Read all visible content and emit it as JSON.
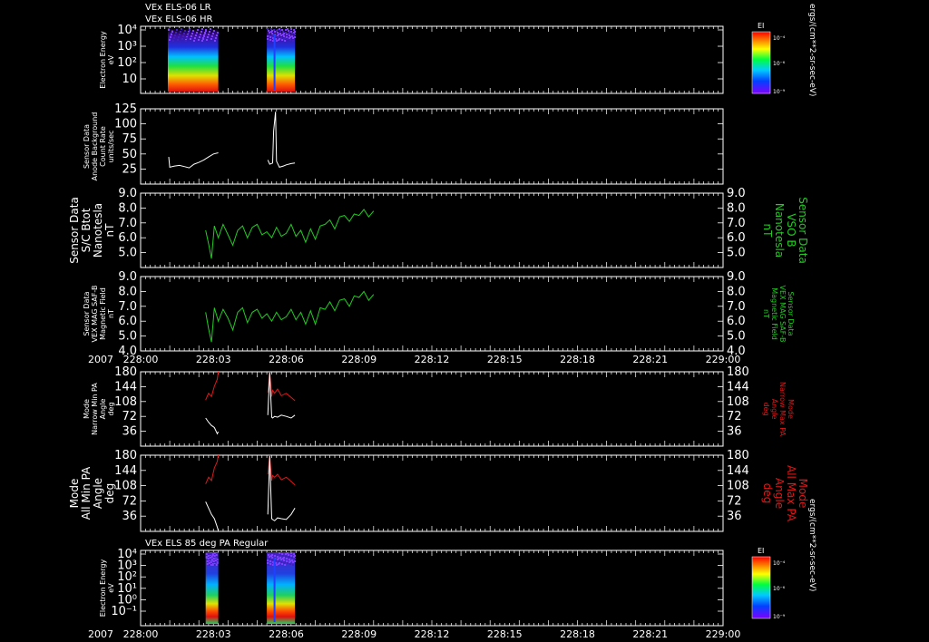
{
  "colors": {
    "background": "#000000",
    "frame": "#ffffff",
    "white_trace": "#ffffff",
    "green_trace": "#22cc22",
    "red_trace": "#e01818"
  },
  "header": {
    "line1": "VEx ELS-06 LR",
    "line2": "VEx ELS-06 HR"
  },
  "x_axis": {
    "year": "2007",
    "range": [
      0,
      60
    ],
    "tick_labels": [
      "228:00",
      "228:03",
      "228:06",
      "228:09",
      "228:12",
      "228:15",
      "228:18",
      "228:21",
      "229:00"
    ]
  },
  "chart_data": [
    {
      "type": "heatmap",
      "id": "els-energy-spectrogram",
      "ylabel": [
        "Electron Energy",
        "eV"
      ],
      "yscale": "log",
      "yticks": [
        "10⁴",
        "10³",
        "10²",
        "10"
      ],
      "data_intervals": [
        [
          2.8,
          8.0
        ],
        [
          13.0,
          15.9
        ]
      ],
      "colorbar": {
        "title": "EI",
        "ticks": [
          "10⁻⁴",
          "10⁻⁶",
          "10⁻⁹"
        ],
        "unit": "ergs/(cm**2-sr-sec-eV)"
      }
    },
    {
      "type": "line",
      "id": "anode-background",
      "ylabel": [
        "Sensor Data",
        "Anode Background",
        "Count Rate",
        "units/sec"
      ],
      "ylim": [
        0,
        125
      ],
      "yticks": [
        "125",
        "100",
        "75",
        "50",
        "25"
      ],
      "series": [
        {
          "name": "Background",
          "color": "white",
          "x": [
            2.9,
            3.0,
            3.5,
            4.0,
            4.5,
            5.0,
            5.5,
            6.0,
            6.5,
            7.0,
            7.5,
            8.0
          ],
          "y": [
            45,
            28,
            30,
            31,
            29,
            27,
            33,
            36,
            40,
            45,
            50,
            52
          ]
        },
        {
          "name": "Background HR",
          "color": "white",
          "x": [
            13.1,
            13.3,
            13.6,
            13.7,
            13.9,
            14.0,
            14.3,
            14.7,
            15.0,
            15.5,
            15.9
          ],
          "y": [
            40,
            33,
            35,
            88,
            120,
            38,
            28,
            30,
            32,
            34,
            35
          ]
        }
      ]
    },
    {
      "type": "line",
      "id": "sc-btot",
      "ylabel": [
        "Sensor Data",
        "S/C Btot",
        "Nanotesla",
        "nT"
      ],
      "right_label": [
        "Sensor Data",
        "VSO B",
        "Nanotesla",
        "nT"
      ],
      "ylim": [
        4.0,
        9.0
      ],
      "yticks": [
        "9.0",
        "8.0",
        "7.0",
        "6.0",
        "5.0"
      ],
      "series": [
        {
          "name": "Btot",
          "color": "green",
          "x": [
            6.7,
            7.0,
            7.3,
            7.6,
            8.0,
            8.5,
            9.0,
            9.5,
            10.0,
            10.5,
            11.0,
            11.5,
            12.0,
            12.5,
            13.0,
            13.5,
            14.0,
            14.5,
            15.0,
            15.5,
            16.0,
            16.5,
            17.0,
            17.5,
            18.0,
            18.5,
            19.0,
            19.5,
            20.0,
            20.5,
            21.0,
            21.5,
            22.0,
            22.5,
            23.0,
            23.5,
            24.0
          ],
          "y": [
            6.5,
            5.6,
            4.6,
            6.8,
            6.0,
            6.9,
            6.2,
            5.5,
            6.5,
            6.8,
            6.0,
            6.7,
            6.9,
            6.2,
            6.4,
            6.0,
            6.7,
            6.1,
            6.3,
            6.9,
            6.1,
            6.5,
            5.7,
            6.6,
            5.9,
            6.8,
            6.9,
            7.2,
            6.6,
            7.4,
            7.5,
            7.1,
            7.6,
            7.5,
            7.9,
            7.4,
            7.8
          ]
        }
      ]
    },
    {
      "type": "line",
      "id": "mag-field",
      "ylabel": [
        "Sensor Data",
        "VEX MAG SAF-B",
        "Magnetic Field",
        "nT"
      ],
      "right_label": [
        "Sensor Data",
        "VEX MAG SAF-B",
        "Magnetic Field",
        "nT"
      ],
      "ylim": [
        4.0,
        9.0
      ],
      "yticks": [
        "9.0",
        "8.0",
        "7.0",
        "6.0",
        "5.0",
        "4.0"
      ],
      "series": [
        {
          "name": "MAG",
          "color": "green",
          "x": [
            6.7,
            7.0,
            7.3,
            7.6,
            8.0,
            8.5,
            9.0,
            9.5,
            10.0,
            10.5,
            11.0,
            11.5,
            12.0,
            12.5,
            13.0,
            13.5,
            14.0,
            14.5,
            15.0,
            15.5,
            16.0,
            16.5,
            17.0,
            17.5,
            18.0,
            18.5,
            19.0,
            19.5,
            20.0,
            20.5,
            21.0,
            21.5,
            22.0,
            22.5,
            23.0,
            23.5,
            24.0
          ],
          "y": [
            6.6,
            5.5,
            4.6,
            6.9,
            6.0,
            6.8,
            6.2,
            5.4,
            6.6,
            6.9,
            5.9,
            6.6,
            6.8,
            6.2,
            6.5,
            6.0,
            6.6,
            6.1,
            6.3,
            6.8,
            6.1,
            6.6,
            5.8,
            6.7,
            5.8,
            6.9,
            6.8,
            7.3,
            6.7,
            7.4,
            7.5,
            7.0,
            7.7,
            7.6,
            8.0,
            7.4,
            7.8
          ]
        }
      ]
    },
    {
      "type": "line",
      "id": "narrow-pa",
      "ylabel": [
        "Mode",
        "Narrow Min PA",
        "Angle",
        "deg"
      ],
      "right_label": [
        "Mode",
        "Narrow Max PA",
        "Angle",
        "deg"
      ],
      "ylim": [
        0,
        180
      ],
      "yticks": [
        "180",
        "144",
        "108",
        "72",
        "36"
      ],
      "series": [
        {
          "name": "Max PA",
          "color": "red",
          "x": [
            6.7,
            7.0,
            7.3,
            7.6,
            7.9,
            8.0
          ],
          "y": [
            112,
            128,
            120,
            145,
            162,
            180
          ]
        },
        {
          "name": "Min PA",
          "color": "white",
          "x": [
            6.7,
            7.0,
            7.3,
            7.6,
            7.9,
            8.0
          ],
          "y": [
            68,
            58,
            50,
            45,
            30,
            35
          ]
        },
        {
          "name": "Max PA HR",
          "color": "red",
          "x": [
            13.1,
            13.3,
            13.5,
            13.6,
            13.8,
            14.1,
            14.5,
            15.0,
            15.5,
            15.9
          ],
          "y": [
            130,
            178,
            120,
            135,
            128,
            138,
            122,
            128,
            118,
            110
          ]
        },
        {
          "name": "Min PA HR",
          "color": "white",
          "x": [
            13.1,
            13.3,
            13.5,
            13.6,
            13.8,
            14.1,
            14.5,
            15.0,
            15.5,
            15.9
          ],
          "y": [
            75,
            178,
            70,
            68,
            72,
            70,
            75,
            72,
            68,
            75
          ]
        }
      ]
    },
    {
      "type": "line",
      "id": "all-pa",
      "ylabel": [
        "Mode",
        "All Min PA",
        "Angle",
        "deg"
      ],
      "right_label": [
        "Mode",
        "All Max PA",
        "Angle",
        "deg"
      ],
      "ylim": [
        0,
        180
      ],
      "yticks": [
        "180",
        "144",
        "108",
        "72",
        "36"
      ],
      "series": [
        {
          "name": "Max PA",
          "color": "red",
          "x": [
            6.7,
            7.0,
            7.3,
            7.6,
            7.9,
            8.0
          ],
          "y": [
            112,
            128,
            120,
            150,
            165,
            180
          ]
        },
        {
          "name": "Min PA",
          "color": "white",
          "x": [
            6.7,
            7.0,
            7.3,
            7.6,
            7.9,
            8.0
          ],
          "y": [
            70,
            55,
            40,
            30,
            10,
            2
          ]
        },
        {
          "name": "Max PA HR",
          "color": "red",
          "x": [
            13.1,
            13.3,
            13.5,
            13.6,
            13.8,
            14.1,
            14.5,
            15.0,
            15.5,
            15.9
          ],
          "y": [
            135,
            178,
            120,
            132,
            128,
            135,
            122,
            128,
            118,
            110
          ]
        },
        {
          "name": "Min PA HR",
          "color": "white",
          "x": [
            13.1,
            13.3,
            13.5,
            13.6,
            13.8,
            14.1,
            14.5,
            15.0,
            15.5,
            15.9
          ],
          "y": [
            40,
            178,
            30,
            28,
            25,
            32,
            30,
            28,
            40,
            55
          ]
        }
      ]
    },
    {
      "type": "heatmap",
      "id": "els-85deg-spectrogram",
      "title": "VEx ELS 85 deg PA Regular",
      "ylabel": [
        "Electron Energy",
        "eV"
      ],
      "yscale": "log",
      "yticks": [
        "10⁴",
        "10³",
        "10²",
        "10¹",
        "10⁰",
        "10⁻¹"
      ],
      "data_intervals": [
        [
          6.7,
          8.0
        ],
        [
          13.0,
          15.9
        ]
      ],
      "colorbar": {
        "title": "EI",
        "ticks": [
          "10⁻⁴",
          "10⁻⁶",
          "10⁻⁹"
        ],
        "unit": "ergs/(cm**2-sr-sec-eV)"
      }
    }
  ]
}
